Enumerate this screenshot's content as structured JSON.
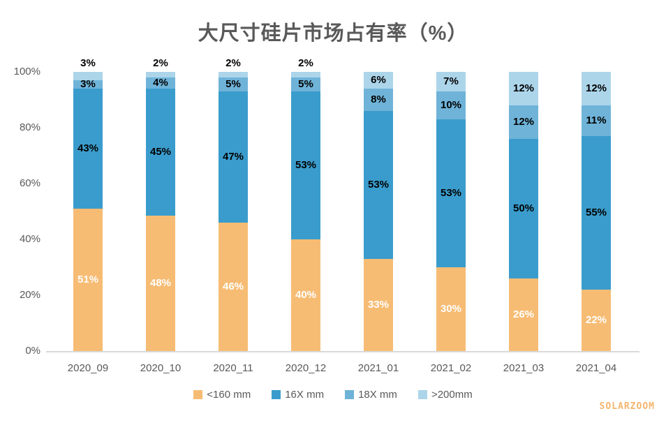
{
  "title": "大尺寸硅片市场占有率（%）",
  "watermark": "SOLARZOOM",
  "colors": {
    "title_text": "#595959",
    "axis_text": "#595959",
    "baseline": "#D9D9D9",
    "watermark": "#F4B56E",
    "background": "#FFFFFF"
  },
  "chart_data": {
    "type": "bar",
    "stacked": true,
    "grid": false,
    "legend_position": "bottom",
    "title": "大尺寸硅片市场占有率（%）",
    "xlabel": "",
    "ylabel": "",
    "ylim": [
      0,
      100
    ],
    "y_ticks": [
      {
        "label": "0%",
        "value": 0
      },
      {
        "label": "20%",
        "value": 20
      },
      {
        "label": "40%",
        "value": 40
      },
      {
        "label": "60%",
        "value": 60
      },
      {
        "label": "80%",
        "value": 80
      },
      {
        "label": "100%",
        "value": 100
      }
    ],
    "categories": [
      "2020_09",
      "2020_10",
      "2020_11",
      "2020_12",
      "2021_01",
      "2021_02",
      "2021_03",
      "2021_04"
    ],
    "series": [
      {
        "name": "<160 mm",
        "color": "#F7BC74",
        "label_color": "#FFFFFF",
        "values": [
          51,
          48,
          46,
          40,
          33,
          30,
          26,
          22
        ]
      },
      {
        "name": "16X mm",
        "color": "#3A9CCC",
        "label_color": "#000000",
        "values": [
          43,
          45,
          47,
          53,
          53,
          53,
          50,
          55
        ]
      },
      {
        "name": "18X mm",
        "color": "#6FB3D8",
        "label_color": "#000000",
        "values": [
          3,
          4,
          5,
          5,
          8,
          10,
          12,
          11
        ]
      },
      {
        "name": ">200mm",
        "color": "#ACD5EA",
        "label_color": "#000000",
        "values": [
          3,
          2,
          2,
          2,
          6,
          7,
          12,
          12
        ]
      }
    ]
  }
}
